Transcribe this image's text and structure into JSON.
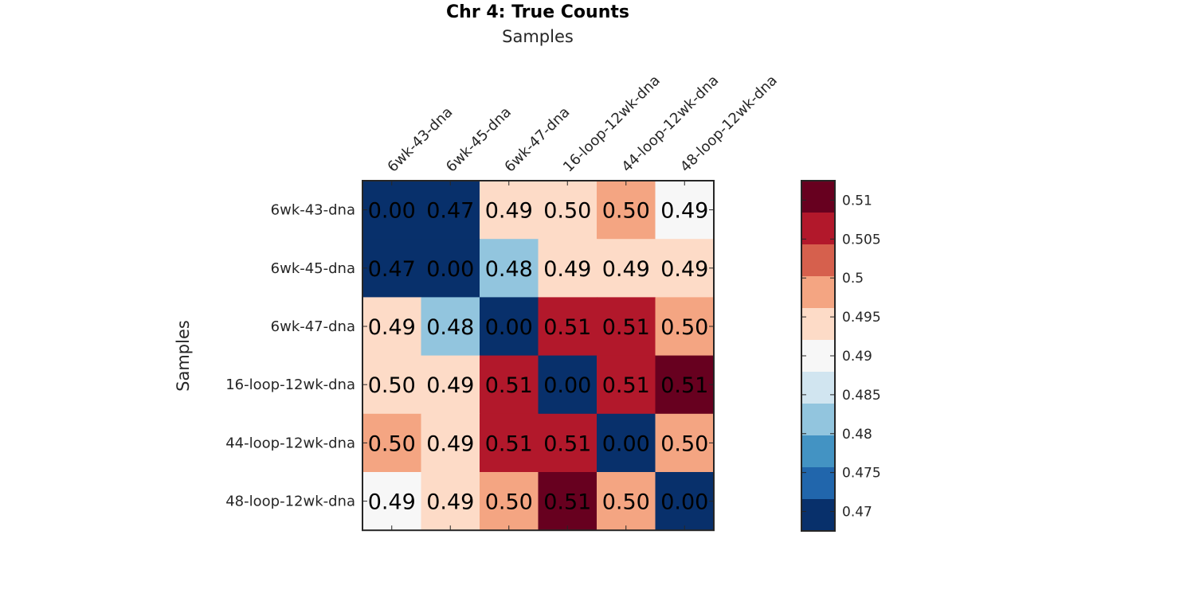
{
  "chart_data": {
    "type": "heatmap",
    "title": "Chr 4: True Counts",
    "xlabel": "Samples",
    "ylabel": "Samples",
    "x_categories": [
      "6wk-43-dna",
      "6wk-45-dna",
      "6wk-47-dna",
      "16-loop-12wk-dna",
      "44-loop-12wk-dna",
      "48-loop-12wk-dna"
    ],
    "y_categories": [
      "6wk-43-dna",
      "6wk-45-dna",
      "6wk-47-dna",
      "16-loop-12wk-dna",
      "44-loop-12wk-dna",
      "48-loop-12wk-dna"
    ],
    "values": [
      [
        0.0,
        0.47,
        0.49,
        0.5,
        0.5,
        0.49
      ],
      [
        0.47,
        0.0,
        0.48,
        0.49,
        0.49,
        0.49
      ],
      [
        0.49,
        0.48,
        0.0,
        0.51,
        0.51,
        0.5
      ],
      [
        0.5,
        0.49,
        0.51,
        0.0,
        0.51,
        0.51
      ],
      [
        0.5,
        0.49,
        0.51,
        0.51,
        0.0,
        0.5
      ],
      [
        0.49,
        0.49,
        0.5,
        0.51,
        0.5,
        0.0
      ]
    ],
    "value_labels": [
      [
        "0.00",
        "0.47",
        "0.49",
        "0.50",
        "0.50",
        "0.49"
      ],
      [
        "0.47",
        "0.00",
        "0.48",
        "0.49",
        "0.49",
        "0.49"
      ],
      [
        "0.49",
        "0.48",
        "0.00",
        "0.51",
        "0.51",
        "0.50"
      ],
      [
        "0.50",
        "0.49",
        "0.51",
        "0.00",
        "0.51",
        "0.51"
      ],
      [
        "0.50",
        "0.49",
        "0.51",
        "0.51",
        "0.00",
        "0.50"
      ],
      [
        "0.49",
        "0.49",
        "0.50",
        "0.51",
        "0.50",
        "0.00"
      ]
    ],
    "cell_colors": [
      [
        "#08306b",
        "#08306b",
        "#fddbc7",
        "#fddbc7",
        "#f4a582",
        "#f7f7f7"
      ],
      [
        "#08306b",
        "#08306b",
        "#92c5de",
        "#fddbc7",
        "#fddbc7",
        "#fddbc7"
      ],
      [
        "#fddbc7",
        "#92c5de",
        "#08306b",
        "#b2182b",
        "#b2182b",
        "#f4a582"
      ],
      [
        "#fddbc7",
        "#fddbc7",
        "#b2182b",
        "#08306b",
        "#b2182b",
        "#67001f"
      ],
      [
        "#f4a582",
        "#fddbc7",
        "#b2182b",
        "#b2182b",
        "#08306b",
        "#f4a582"
      ],
      [
        "#f7f7f7",
        "#fddbc7",
        "#f4a582",
        "#67001f",
        "#f4a582",
        "#08306b"
      ]
    ],
    "colorbar": {
      "colors_top_to_bottom": [
        "#67001f",
        "#b2182b",
        "#d6604d",
        "#f4a582",
        "#fddbc7",
        "#f7f7f7",
        "#d1e5f0",
        "#92c5de",
        "#4393c3",
        "#2166ac",
        "#08306b"
      ],
      "range": [
        0.4675,
        0.5125
      ],
      "ticks": [
        0.51,
        0.505,
        0.5,
        0.495,
        0.49,
        0.485,
        0.48,
        0.475,
        0.47
      ],
      "tick_labels": [
        "0.51",
        "0.505",
        "0.5",
        "0.495",
        "0.49",
        "0.485",
        "0.48",
        "0.475",
        "0.47"
      ]
    }
  }
}
